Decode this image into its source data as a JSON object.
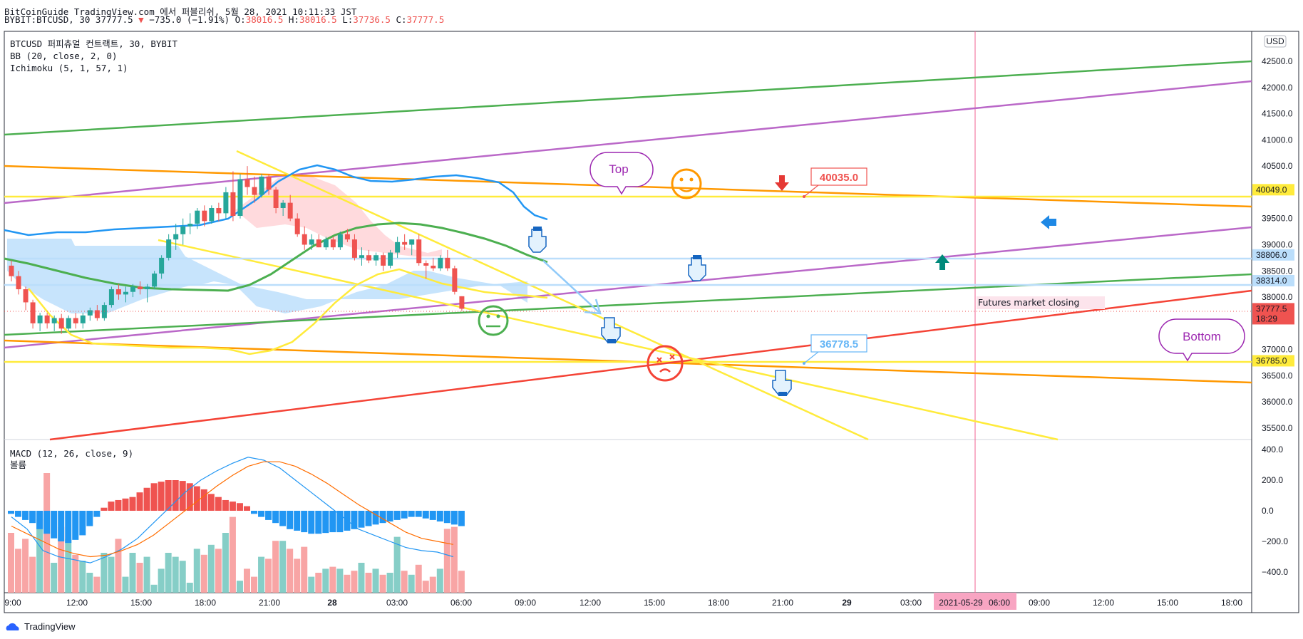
{
  "header": {
    "line1": "BitCoinGuide TradingView.com 에서 퍼블리쉬, 5월 28, 2021 10:11:33 JST",
    "symbol": "BYBIT:BTCUSD, 30 37777.5",
    "change_arrow": "▼",
    "change": "−735.0 (−1.91%)",
    "o_label": "O:",
    "o": "38016.5",
    "h_label": "H:",
    "h": "38016.5",
    "l_label": "L:",
    "l": "37736.5",
    "c_label": "C:",
    "c": "37777.5"
  },
  "legend": {
    "title": "BTCUSD 퍼피츄얼 컨트랙트, 30, BYBIT",
    "bb": "BB (20, close, 2, 0)",
    "ichimoku": "Ichimoku (5, 1, 57, 1)",
    "macd": "MACD (12, 26, close, 9)",
    "volume": "볼륨"
  },
  "currency": "USD",
  "brand": "TradingView",
  "colors": {
    "up": "#26a69a",
    "down": "#ef5350",
    "bb": "#2196f3",
    "green_line": "#4caf50",
    "purple_line": "#ba68c8",
    "orange_line": "#ff9800",
    "yellow_line": "#ffeb3b",
    "red_line": "#f44336"
  },
  "chart_data": [
    {
      "type": "candlestick",
      "x_ticks": [
        "9:00",
        "12:00",
        "15:00",
        "18:00",
        "21:00",
        "28",
        "03:00",
        "06:00",
        "09:00",
        "12:00",
        "15:00",
        "18:00",
        "21:00",
        "29",
        "03:00",
        "2021-05-29",
        "06:00",
        "09:00",
        "12:00",
        "15:00",
        "18:00"
      ],
      "y_ticks": [
        35500,
        36000,
        36500,
        37000,
        38000,
        38500,
        39000,
        39500,
        40500,
        41000,
        41500,
        42000,
        42500
      ],
      "ylim": [
        35200,
        43000
      ],
      "price_labels": [
        {
          "value": 40049.0,
          "text": "40049.0",
          "color": "#ffeb3b"
        },
        {
          "value": 38806.0,
          "text": "38806.0",
          "color": "#bbdefb"
        },
        {
          "value": 38314.0,
          "text": "38314.0",
          "color": "#bbdefb"
        },
        {
          "value": 37777.5,
          "text": "37777.5",
          "countdown": "18:29",
          "color": "#ef5350"
        },
        {
          "value": 36785.0,
          "text": "36785.0",
          "color": "#ffeb3b"
        }
      ],
      "annotations": [
        "Top",
        "Bottom",
        "40035.0",
        "36778.5",
        "Futures market closing"
      ],
      "candles": [
        [
          38600,
          38700,
          38300,
          38400
        ],
        [
          38400,
          38500,
          38050,
          38150
        ],
        [
          38150,
          38200,
          37750,
          37900
        ],
        [
          37900,
          37950,
          37400,
          37500
        ],
        [
          37500,
          37700,
          37350,
          37650
        ],
        [
          37650,
          37700,
          37400,
          37500
        ],
        [
          37500,
          37650,
          37350,
          37600
        ],
        [
          37600,
          37680,
          37300,
          37400
        ],
        [
          37400,
          37650,
          37350,
          37600
        ],
        [
          37600,
          37700,
          37400,
          37500
        ],
        [
          37500,
          37700,
          37400,
          37650
        ],
        [
          37650,
          37800,
          37550,
          37750
        ],
        [
          37750,
          37850,
          37550,
          37600
        ],
        [
          37600,
          37900,
          37550,
          37850
        ],
        [
          37850,
          38200,
          37800,
          38150
        ],
        [
          38150,
          38250,
          37950,
          38050
        ],
        [
          38050,
          38200,
          37900,
          38100
        ],
        [
          38100,
          38250,
          38000,
          38200
        ],
        [
          38200,
          38300,
          38050,
          38150
        ],
        [
          38150,
          38250,
          37900,
          38200
        ],
        [
          38200,
          38500,
          38150,
          38450
        ],
        [
          38450,
          38800,
          38350,
          38750
        ],
        [
          38750,
          39200,
          38700,
          39100
        ],
        [
          39100,
          39400,
          38900,
          39200
        ],
        [
          39200,
          39500,
          39000,
          39350
        ],
        [
          39350,
          39600,
          39200,
          39400
        ],
        [
          39400,
          39700,
          39300,
          39650
        ],
        [
          39650,
          39750,
          39350,
          39450
        ],
        [
          39450,
          39750,
          39400,
          39700
        ],
        [
          39700,
          39800,
          39450,
          39600
        ],
        [
          39600,
          40100,
          39500,
          40000
        ],
        [
          40000,
          40400,
          39450,
          39550
        ],
        [
          39550,
          40350,
          39500,
          40250
        ],
        [
          40250,
          40500,
          39950,
          40100
        ],
        [
          40100,
          40300,
          39800,
          39950
        ],
        [
          39950,
          40350,
          39900,
          40300
        ],
        [
          40300,
          40350,
          39950,
          40050
        ],
        [
          40050,
          40100,
          39600,
          39700
        ],
        [
          39700,
          39850,
          39550,
          39800
        ],
        [
          39800,
          39950,
          39450,
          39500
        ],
        [
          39500,
          39600,
          39150,
          39200
        ],
        [
          39200,
          39350,
          38900,
          39000
        ],
        [
          39000,
          39200,
          38900,
          39100
        ],
        [
          39100,
          39200,
          38950,
          38950
        ],
        [
          38950,
          39150,
          38900,
          39100
        ],
        [
          39100,
          39150,
          38900,
          38950
        ],
        [
          38950,
          39250,
          38900,
          39200
        ],
        [
          39200,
          39300,
          39050,
          39100
        ],
        [
          39100,
          39200,
          38700,
          38750
        ],
        [
          38750,
          38950,
          38600,
          38800
        ],
        [
          38800,
          38900,
          38650,
          38700
        ],
        [
          38700,
          38850,
          38600,
          38800
        ],
        [
          38800,
          38850,
          38500,
          38600
        ],
        [
          38600,
          38900,
          38550,
          38850
        ],
        [
          38850,
          39150,
          38750,
          39050
        ],
        [
          39050,
          39200,
          38900,
          39000
        ],
        [
          39000,
          39100,
          38800,
          39100
        ],
        [
          39100,
          39200,
          38600,
          38650
        ],
        [
          38650,
          38700,
          38350,
          38600
        ],
        [
          38600,
          38750,
          38500,
          38550
        ],
        [
          38550,
          38800,
          38500,
          38750
        ],
        [
          38750,
          38900,
          38500,
          38550
        ],
        [
          38550,
          38600,
          38050,
          38100
        ],
        [
          38016.5,
          38016.5,
          37736.5,
          37777.5
        ]
      ]
    },
    {
      "type": "bar",
      "name": "MACD",
      "y_ticks": [
        400.0,
        200.0,
        0.0,
        -200.0,
        -400.0
      ],
      "ylim": [
        -500,
        480
      ],
      "histogram": [
        -20,
        -40,
        -60,
        -80,
        -120,
        -150,
        -180,
        -200,
        -210,
        -190,
        -160,
        -100,
        -40,
        20,
        60,
        70,
        80,
        90,
        120,
        150,
        180,
        190,
        200,
        200,
        195,
        180,
        160,
        140,
        110,
        90,
        70,
        60,
        50,
        30,
        -20,
        -40,
        -60,
        -80,
        -100,
        -120,
        -130,
        -140,
        -150,
        -150,
        -145,
        -140,
        -140,
        -130,
        -120,
        -110,
        -100,
        -90,
        -80,
        -70,
        -60,
        -50,
        -40,
        -40,
        -50,
        -60,
        -70,
        -80,
        -90,
        -100
      ],
      "volume": [
        300,
        220,
        270,
        180,
        370,
        600,
        150,
        330,
        270,
        190,
        160,
        100,
        80,
        200,
        180,
        270,
        80,
        200,
        150,
        180,
        40,
        120,
        200,
        180,
        160,
        50,
        220,
        190,
        240,
        220,
        300,
        380,
        60,
        120,
        80,
        180,
        170,
        260,
        260,
        220,
        170,
        230,
        80,
        100,
        120,
        130,
        120,
        90,
        110,
        150,
        100,
        120,
        90,
        100,
        280,
        110,
        90,
        140,
        60,
        80,
        120,
        320,
        330,
        110
      ],
      "macd_line": [
        -40,
        -120,
        -260,
        -300,
        -320,
        -340,
        -300,
        -250,
        -180,
        -80,
        20,
        120,
        200,
        260,
        310,
        350,
        330,
        280,
        200,
        120,
        40,
        -40,
        -120,
        -160,
        -200,
        -240,
        -260,
        -270,
        -300
      ],
      "signal_line": [
        -100,
        -150,
        -200,
        -250,
        -280,
        -300,
        -290,
        -260,
        -220,
        -160,
        -80,
        0,
        80,
        160,
        230,
        290,
        320,
        320,
        290,
        240,
        180,
        110,
        40,
        -20,
        -80,
        -140,
        -180,
        -200,
        -220
      ]
    }
  ]
}
